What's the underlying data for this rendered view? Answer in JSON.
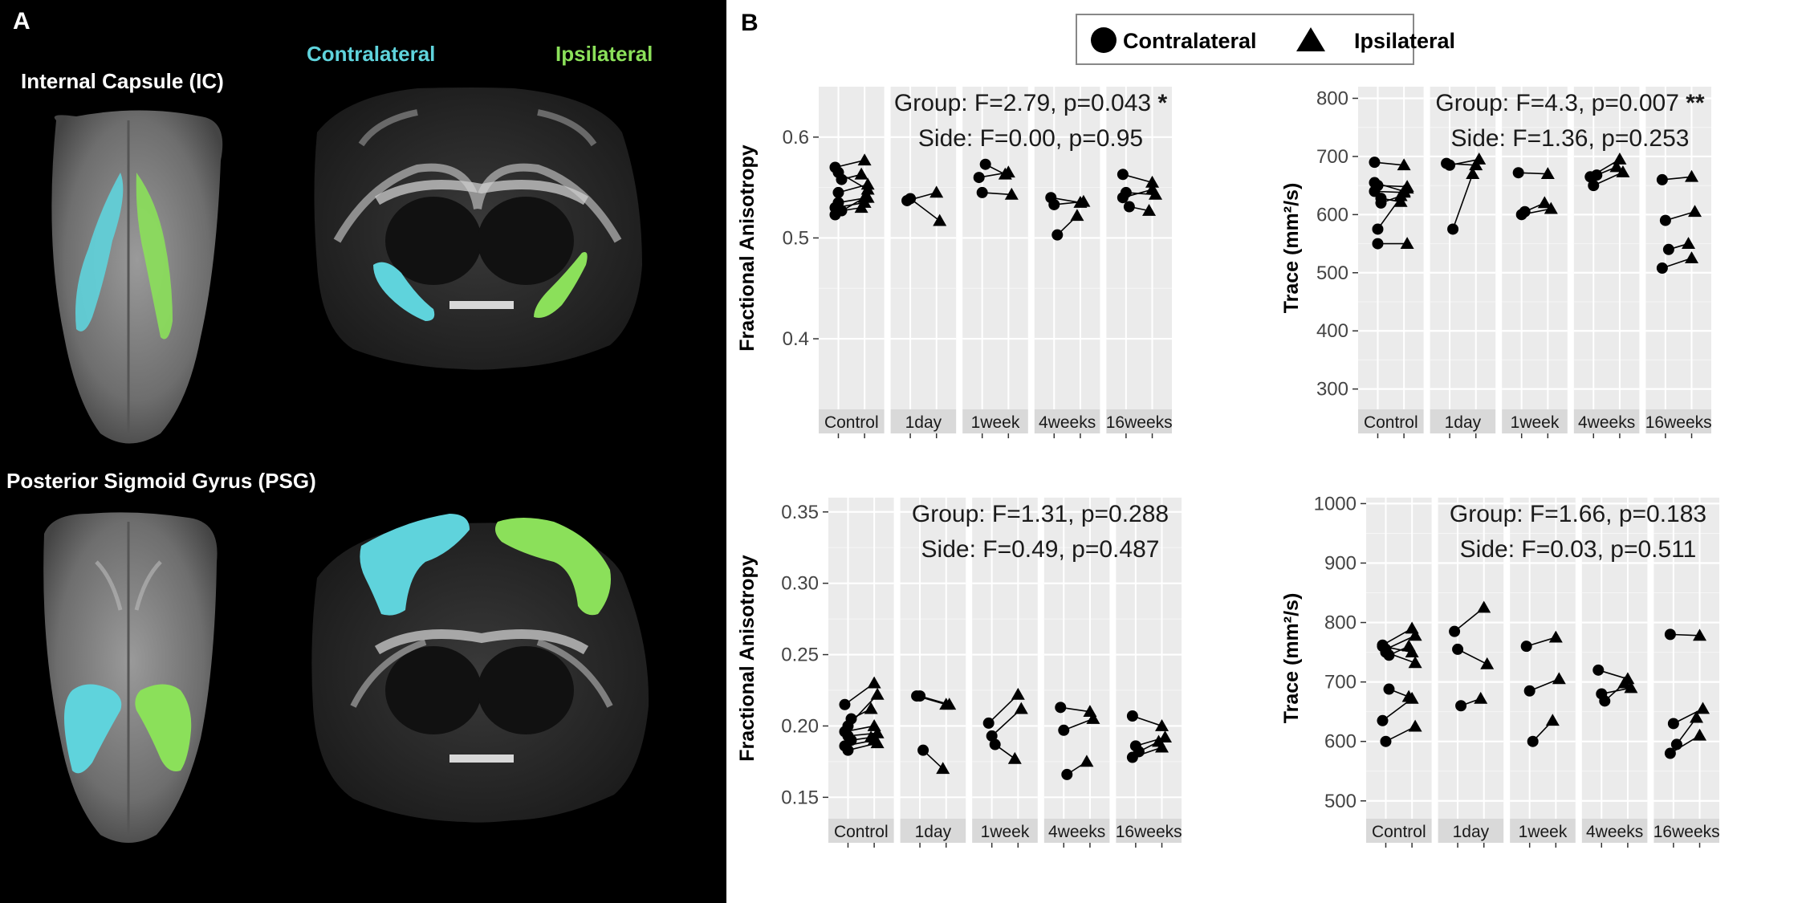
{
  "figure": {
    "panel_a": {
      "label": "A",
      "legend_contralateral": "Contralateral",
      "legend_ipsilateral": "Ipsilateral",
      "region_ic": "Internal Capsule (IC)",
      "region_psg": "Posterior Sigmoid Gyrus (PSG)",
      "colors": {
        "contralateral": "#5fd3dc",
        "ipsilateral": "#8be05a"
      }
    },
    "panel_b": {
      "label": "B",
      "legend": {
        "contralateral": "Contralateral",
        "ipsilateral": "Ipsilateral"
      }
    }
  },
  "chart_data": [
    {
      "type": "scatter",
      "id": "ic_fa",
      "ylabel": "Fractional Anisotropy",
      "ylim": [
        0.33,
        0.65
      ],
      "yticks": [
        0.4,
        0.5,
        0.6
      ],
      "ytick_labels": [
        "0.4",
        "0.5",
        "0.6"
      ],
      "title_group": "Group: F=2.79, p=0.043",
      "title_group_sig": "*",
      "title_side": "Side: F=0.00, p=0.95",
      "categories": [
        "Control",
        "1day",
        "1week",
        "4weeks",
        "16weeks"
      ],
      "pairs": [
        [
          [
            0.53,
            0.535
          ],
          [
            0.535,
            0.54
          ],
          [
            0.527,
            0.53
          ],
          [
            0.523,
            0.54
          ],
          [
            0.545,
            0.553
          ],
          [
            0.558,
            0.563
          ],
          [
            0.57,
            0.577
          ],
          [
            0.565,
            0.548
          ]
        ],
        [
          [
            0.537,
            0.545
          ],
          [
            0.539,
            0.517
          ]
        ],
        [
          [
            0.56,
            0.565
          ],
          [
            0.545,
            0.543
          ],
          [
            0.573,
            0.563
          ]
        ],
        [
          [
            0.54,
            0.535
          ],
          [
            0.533,
            0.536
          ],
          [
            0.503,
            0.522
          ]
        ],
        [
          [
            0.563,
            0.555
          ],
          [
            0.545,
            0.543
          ],
          [
            0.531,
            0.527
          ],
          [
            0.54,
            0.548
          ]
        ]
      ]
    },
    {
      "type": "scatter",
      "id": "ic_trace",
      "ylabel": "Trace (mm²/s)",
      "ylim": [
        265,
        820
      ],
      "yticks": [
        300,
        400,
        500,
        600,
        700,
        800
      ],
      "ytick_labels": [
        "300",
        "400",
        "500",
        "600",
        "700",
        "800"
      ],
      "title_group": "Group: F=4.3, p=0.007",
      "title_group_sig": "**",
      "title_side": "Side: F=1.36, p=0.253",
      "categories": [
        "Control",
        "1day",
        "1week",
        "4weeks",
        "16weeks"
      ],
      "pairs": [
        [
          [
            690,
            685
          ],
          [
            575,
            645
          ],
          [
            620,
            632
          ],
          [
            640,
            638
          ],
          [
            650,
            648
          ],
          [
            628,
            622
          ],
          [
            655,
            640
          ],
          [
            550,
            550
          ]
        ],
        [
          [
            688,
            685
          ],
          [
            685,
            695
          ],
          [
            575,
            670
          ]
        ],
        [
          [
            672,
            670
          ],
          [
            600,
            610
          ],
          [
            605,
            620
          ]
        ],
        [
          [
            665,
            695
          ],
          [
            650,
            673
          ],
          [
            668,
            682
          ]
        ],
        [
          [
            660,
            665
          ],
          [
            590,
            605
          ],
          [
            540,
            550
          ],
          [
            508,
            525
          ]
        ]
      ]
    },
    {
      "type": "scatter",
      "id": "psg_fa",
      "ylabel": "Fractional Anisotropy",
      "ylim": [
        0.135,
        0.36
      ],
      "yticks": [
        0.15,
        0.2,
        0.25,
        0.3,
        0.35
      ],
      "ytick_labels": [
        "0.15",
        "0.20",
        "0.25",
        "0.30",
        "0.35"
      ],
      "title_group": "Group: F=1.31, p=0.288",
      "title_group_sig": "",
      "title_side": "Side: F=0.49, p=0.487",
      "categories": [
        "Control",
        "1day",
        "1week",
        "4weeks",
        "16weeks"
      ],
      "pairs": [
        [
          [
            0.215,
            0.23
          ],
          [
            0.2,
            0.222
          ],
          [
            0.205,
            0.212
          ],
          [
            0.196,
            0.2
          ],
          [
            0.193,
            0.195
          ],
          [
            0.19,
            0.192
          ],
          [
            0.186,
            0.19
          ],
          [
            0.183,
            0.188
          ]
        ],
        [
          [
            0.221,
            0.215
          ],
          [
            0.221,
            0.215
          ],
          [
            0.183,
            0.17
          ]
        ],
        [
          [
            0.202,
            0.222
          ],
          [
            0.193,
            0.212
          ],
          [
            0.187,
            0.177
          ]
        ],
        [
          [
            0.213,
            0.21
          ],
          [
            0.197,
            0.205
          ],
          [
            0.166,
            0.175
          ]
        ],
        [
          [
            0.207,
            0.2
          ],
          [
            0.186,
            0.192
          ],
          [
            0.182,
            0.189
          ],
          [
            0.178,
            0.185
          ]
        ]
      ]
    },
    {
      "type": "scatter",
      "id": "psg_trace",
      "ylabel": "Trace (mm²/s)",
      "ylim": [
        470,
        1010
      ],
      "yticks": [
        500,
        600,
        700,
        800,
        900,
        1000
      ],
      "ytick_labels": [
        "500",
        "600",
        "700",
        "800",
        "900",
        "1000"
      ],
      "title_group": "Group: F=1.66, p=0.183",
      "title_group_sig": "",
      "title_side": "Side: F=0.03, p=0.511",
      "categories": [
        "Control",
        "1day",
        "1week",
        "4weeks",
        "16weeks"
      ],
      "pairs": [
        [
          [
            762,
            790
          ],
          [
            755,
            778
          ],
          [
            745,
            760
          ],
          [
            760,
            750
          ],
          [
            750,
            732
          ],
          [
            688,
            675
          ],
          [
            635,
            672
          ],
          [
            600,
            625
          ]
        ],
        [
          [
            785,
            825
          ],
          [
            755,
            730
          ],
          [
            660,
            672
          ]
        ],
        [
          [
            760,
            775
          ],
          [
            685,
            705
          ],
          [
            600,
            635
          ]
        ],
        [
          [
            720,
            705
          ],
          [
            680,
            690
          ],
          [
            668,
            698
          ]
        ],
        [
          [
            780,
            778
          ],
          [
            630,
            655
          ],
          [
            595,
            640
          ],
          [
            580,
            610
          ]
        ]
      ]
    }
  ]
}
